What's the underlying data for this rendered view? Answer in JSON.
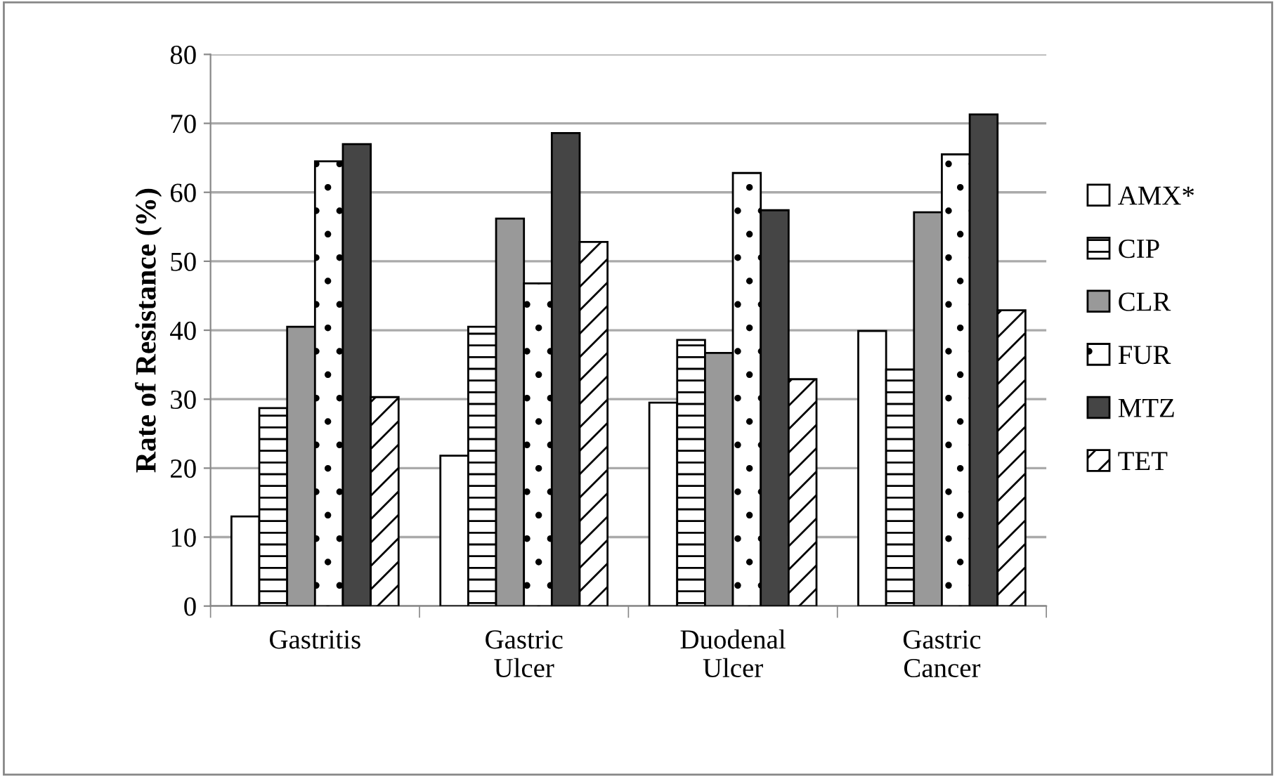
{
  "chart_data": {
    "type": "bar",
    "ylabel": "Rate of Resistance (%)",
    "categories": [
      "Gastritis",
      "Gastric\nUlcer",
      "Duodenal\nUlcer",
      "Gastric\nCancer"
    ],
    "series": [
      {
        "name": "AMX*",
        "color": "#ffffff",
        "values": [
          13.0,
          21.8,
          29.5,
          39.9
        ]
      },
      {
        "name": "CIP",
        "color": "#ffffff",
        "values": [
          28.7,
          40.5,
          38.6,
          34.3
        ]
      },
      {
        "name": "CLR",
        "color": "#999999",
        "values": [
          40.5,
          56.2,
          36.7,
          57.1
        ]
      },
      {
        "name": "FUR",
        "color": "#ffffff",
        "values": [
          64.5,
          46.8,
          62.8,
          65.5
        ]
      },
      {
        "name": "MTZ",
        "color": "#454545",
        "values": [
          67.0,
          68.6,
          57.4,
          71.3
        ]
      },
      {
        "name": "TET",
        "color": "#ffffff",
        "values": [
          30.3,
          52.8,
          32.9,
          42.9
        ]
      }
    ],
    "ylim": [
      0,
      80
    ],
    "yticks": [
      0,
      10,
      20,
      30,
      40,
      50,
      60,
      70,
      80
    ],
    "grid": "y",
    "legend": "right"
  }
}
